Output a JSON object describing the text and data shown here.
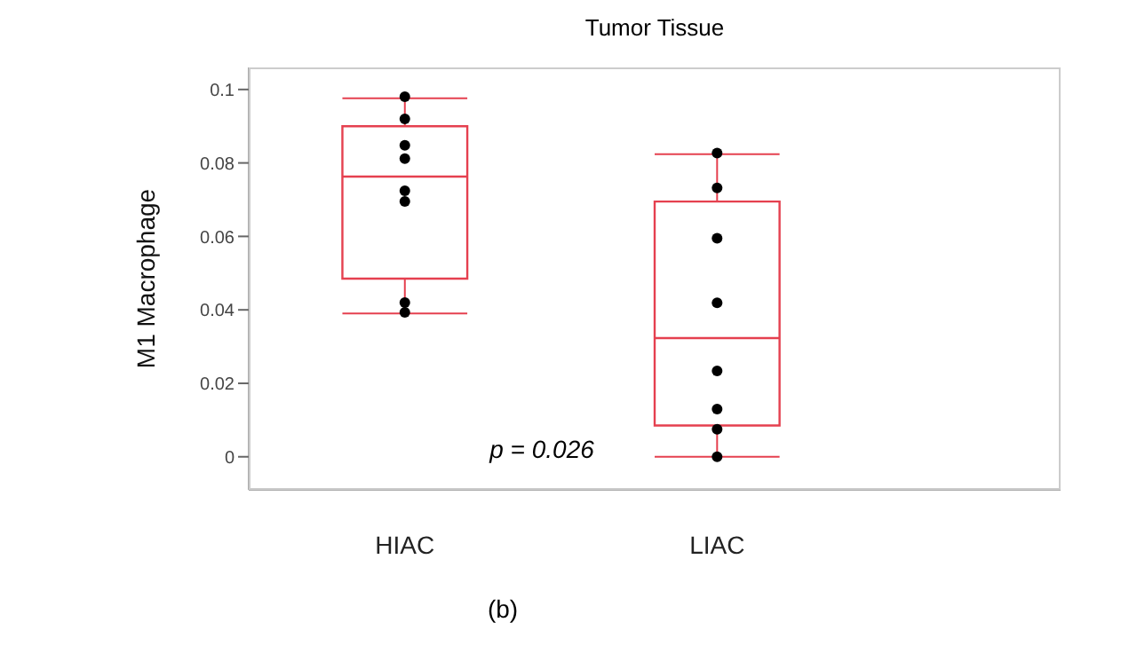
{
  "chart_data": {
    "type": "box",
    "title": "Tumor Tissue",
    "ylabel": "M1 Macrophage",
    "categories": [
      "HIAC",
      "LIAC"
    ],
    "ylim": [
      -0.009,
      0.106
    ],
    "yticks": [
      0,
      0.02,
      0.04,
      0.06,
      0.08,
      0.1
    ],
    "series": [
      {
        "color": "#e5404f",
        "boxes": [
          {
            "low": 0.039,
            "q1": 0.0485,
            "median": 0.0763,
            "q3": 0.09,
            "high": 0.0976
          },
          {
            "low": 0,
            "q1": 0.0085,
            "median": 0.0323,
            "q3": 0.0695,
            "high": 0.0824
          }
        ]
      },
      {
        "type": "scatter",
        "color": "#000000",
        "marker": "circle",
        "x": [
          "HIAC",
          "HIAC",
          "HIAC",
          "HIAC",
          "HIAC",
          "HIAC",
          "HIAC",
          "HIAC",
          "LIAC",
          "LIAC",
          "LIAC",
          "LIAC",
          "LIAC",
          "LIAC",
          "LIAC",
          "LIAC"
        ],
        "values": [
          0.098,
          0.092,
          0.0848,
          0.0812,
          0.0724,
          0.0695,
          0.042,
          0.0393,
          0.0827,
          0.0732,
          0.0595,
          0.0419,
          0.0234,
          0.013,
          0.0075,
          0
        ]
      }
    ],
    "annotations": [
      "p = 0.026",
      "(b)"
    ]
  }
}
